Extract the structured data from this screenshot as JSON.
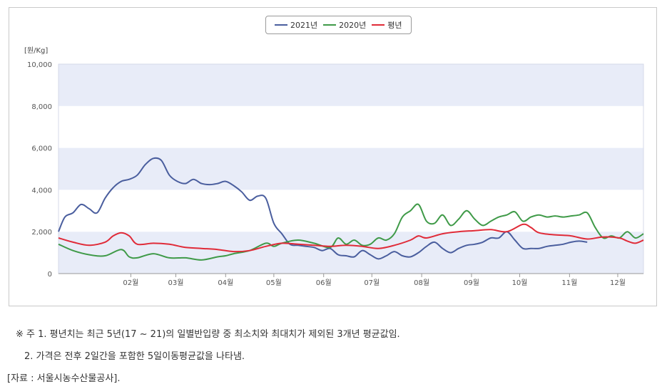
{
  "chart_data": {
    "type": "line",
    "unit": "[원/Kg]",
    "ylim": [
      0,
      10000
    ],
    "y_ticks": [
      0,
      2000,
      4000,
      6000,
      8000,
      10000
    ],
    "y_tick_labels": [
      "0",
      "2,000",
      "4,000",
      "6,000",
      "8,000",
      "10,000"
    ],
    "x_tick_labels": [
      "02월",
      "03월",
      "04월",
      "05월",
      "06월",
      "07월",
      "08월",
      "09월",
      "10월",
      "11월",
      "12월"
    ],
    "x_tick_days": [
      46,
      74,
      105,
      135,
      166,
      196,
      227,
      258,
      288,
      319,
      349
    ],
    "x_range_days": [
      1,
      365
    ],
    "grid": "alternating horizontal bands",
    "legend_position": "top-center",
    "series": [
      {
        "name": "2021년",
        "color": "#4a5e9e",
        "x": [
          1,
          5,
          10,
          15,
          20,
          25,
          30,
          35,
          40,
          45,
          50,
          55,
          60,
          65,
          70,
          75,
          80,
          85,
          90,
          95,
          100,
          105,
          110,
          115,
          120,
          125,
          130,
          135,
          140,
          145,
          150,
          155,
          160,
          165,
          170,
          175,
          180,
          185,
          190,
          195,
          200,
          205,
          210,
          215,
          220,
          225,
          230,
          235,
          240,
          245,
          250,
          255,
          260,
          265,
          270,
          275,
          280,
          285,
          290,
          295,
          300,
          305,
          310,
          315,
          320,
          325,
          330
        ],
        "values": [
          2000,
          2700,
          2900,
          3300,
          3100,
          2900,
          3600,
          4100,
          4400,
          4500,
          4700,
          5200,
          5500,
          5400,
          4700,
          4400,
          4300,
          4500,
          4300,
          4250,
          4300,
          4400,
          4200,
          3900,
          3500,
          3700,
          3600,
          2400,
          1900,
          1400,
          1350,
          1300,
          1250,
          1100,
          1200,
          900,
          850,
          800,
          1100,
          900,
          700,
          850,
          1050,
          850,
          800,
          1000,
          1300,
          1500,
          1200,
          1000,
          1200,
          1350,
          1400,
          1500,
          1700,
          1700,
          2000,
          1600,
          1200,
          1200,
          1200,
          1300,
          1350,
          1400,
          1500,
          1550,
          1500
        ]
      },
      {
        "name": "2020년",
        "color": "#3f9a48",
        "x": [
          1,
          10,
          20,
          30,
          40,
          45,
          50,
          60,
          70,
          80,
          90,
          100,
          105,
          110,
          120,
          130,
          135,
          140,
          150,
          160,
          170,
          175,
          180,
          185,
          190,
          195,
          200,
          205,
          210,
          215,
          220,
          225,
          230,
          235,
          240,
          245,
          250,
          255,
          260,
          265,
          270,
          275,
          280,
          285,
          290,
          295,
          300,
          305,
          310,
          315,
          320,
          325,
          330,
          335,
          340,
          345,
          350,
          355,
          360,
          365
        ],
        "values": [
          1400,
          1100,
          900,
          850,
          1150,
          800,
          750,
          950,
          750,
          750,
          650,
          800,
          850,
          950,
          1100,
          1450,
          1300,
          1450,
          1600,
          1450,
          1250,
          1700,
          1400,
          1600,
          1350,
          1400,
          1700,
          1600,
          1900,
          2700,
          3000,
          3300,
          2500,
          2400,
          2800,
          2300,
          2600,
          3000,
          2600,
          2300,
          2500,
          2700,
          2800,
          2950,
          2500,
          2700,
          2800,
          2700,
          2750,
          2700,
          2750,
          2800,
          2900,
          2200,
          1700,
          1800,
          1700,
          2000,
          1700,
          1900
        ]
      },
      {
        "name": "평년",
        "color": "#e02b38",
        "x": [
          1,
          10,
          20,
          30,
          35,
          40,
          45,
          50,
          60,
          70,
          80,
          90,
          100,
          110,
          120,
          130,
          140,
          150,
          160,
          170,
          180,
          190,
          200,
          210,
          220,
          225,
          230,
          240,
          250,
          260,
          270,
          280,
          290,
          295,
          300,
          310,
          320,
          330,
          340,
          350,
          355,
          360,
          365
        ],
        "values": [
          1700,
          1500,
          1350,
          1500,
          1800,
          1950,
          1800,
          1400,
          1450,
          1400,
          1250,
          1200,
          1150,
          1050,
          1100,
          1300,
          1450,
          1400,
          1350,
          1300,
          1350,
          1300,
          1200,
          1350,
          1600,
          1800,
          1700,
          1900,
          2000,
          2050,
          2100,
          2000,
          2350,
          2200,
          1950,
          1850,
          1800,
          1650,
          1750,
          1700,
          1550,
          1450,
          1600
        ]
      }
    ]
  },
  "notes": {
    "line1": "※ 주 1. 평년치는 최근 5년(17 ~ 21)의 일별반입량 중 최소치와 최대치가 제외된 3개년 평균값임.",
    "line2": "2. 가격은 전후 2일간을 포함한 5일이동평균값을 나타냄."
  },
  "source": "[자료 : 서울시농수산물공사]."
}
